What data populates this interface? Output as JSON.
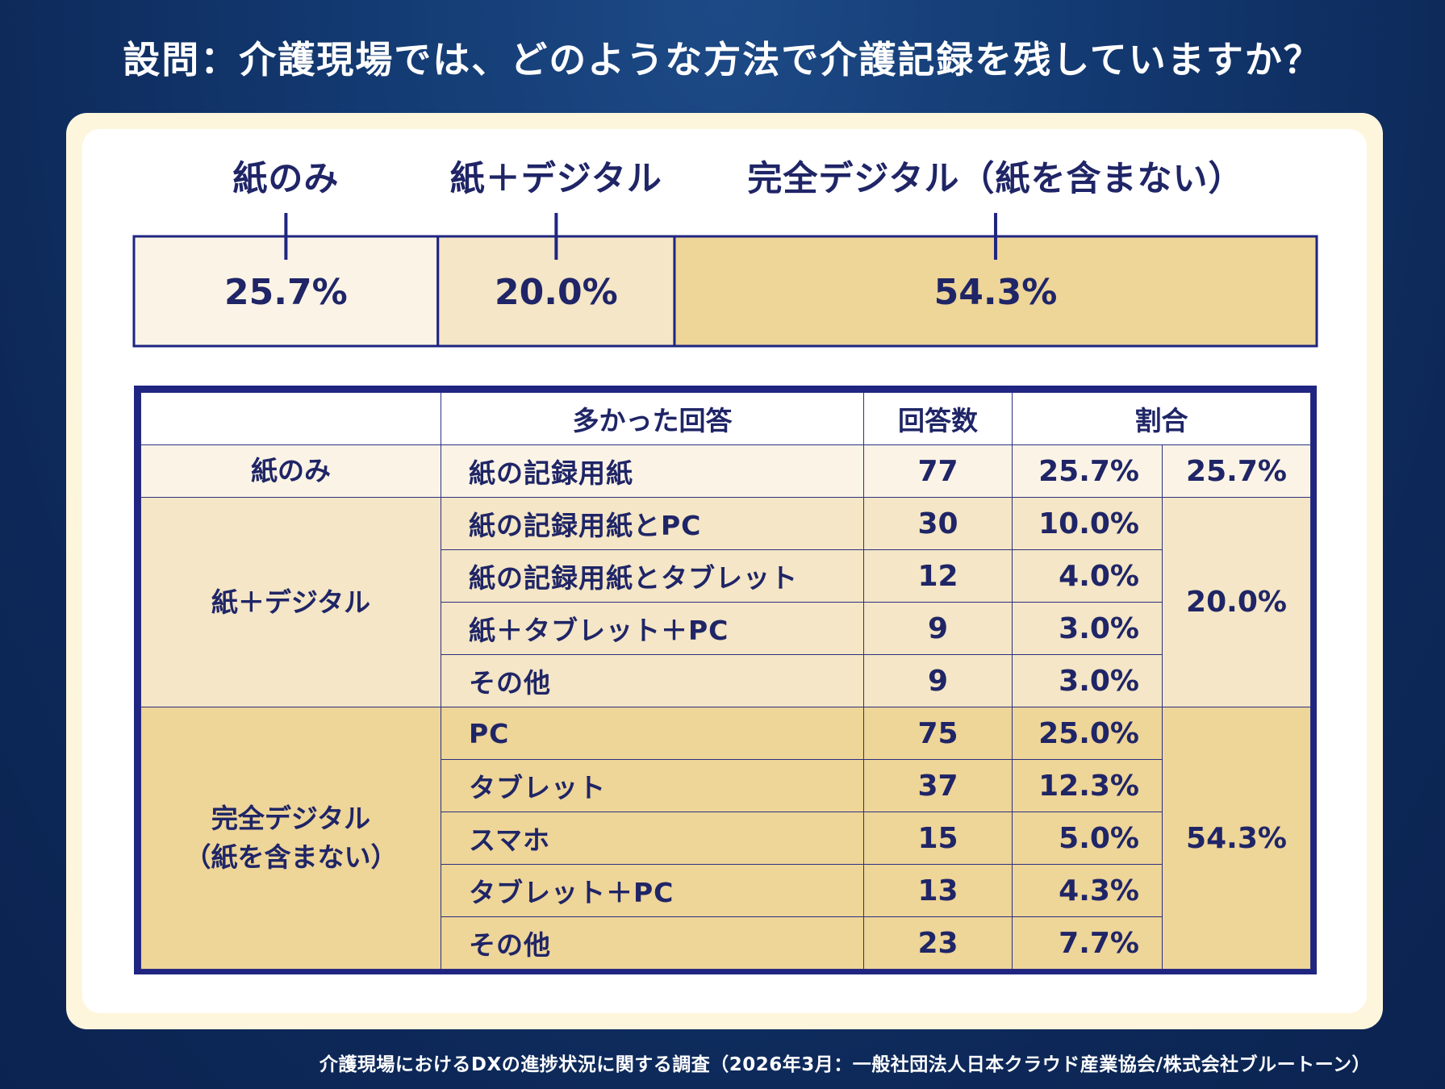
{
  "title": "設問：介護現場では、どのような方法で介護記録を残していますか？",
  "source": "介護現場におけるDXの進捗状況に関する調査（2026年3月：一般社団法人日本クラウド産業協会/株式会社ブルートーン）",
  "colors": {
    "background": "#0d2858",
    "card_outer": "#fdf6dc",
    "paper_only": "#fbf4e6",
    "paper_digital": "#f4e6c6",
    "full_digital": "#eed598",
    "ink": "#1f2566",
    "border": "#1f2580"
  },
  "chart_data": {
    "type": "bar",
    "orientation": "horizontal-stacked-100",
    "categories": [
      "紙のみ",
      "紙＋デジタル",
      "完全デジタル（紙を含まない）"
    ],
    "values": [
      25.7,
      20.0,
      54.3
    ],
    "value_labels": [
      "25.7%",
      "20.0%",
      "54.3%"
    ],
    "unit": "%"
  },
  "table": {
    "headers": {
      "category": "",
      "answer": "多かった回答",
      "count": "回答数",
      "ratio": "割合"
    },
    "groups": [
      {
        "category": "紙のみ",
        "total": "25.7%",
        "rows": [
          {
            "answer": "紙の記録用紙",
            "count": "77",
            "percent": "25.7%"
          }
        ]
      },
      {
        "category": "紙＋デジタル",
        "total": "20.0%",
        "rows": [
          {
            "answer": "紙の記録用紙とPC",
            "count": "30",
            "percent": "10.0%"
          },
          {
            "answer": "紙の記録用紙とタブレット",
            "count": "12",
            "percent": "4.0%"
          },
          {
            "answer": "紙＋タブレット＋PC",
            "count": "9",
            "percent": "3.0%"
          },
          {
            "answer": "その他",
            "count": "9",
            "percent": "3.0%"
          }
        ]
      },
      {
        "category": "完全デジタル\n（紙を含まない）",
        "total": "54.3%",
        "rows": [
          {
            "answer": "PC",
            "count": "75",
            "percent": "25.0%"
          },
          {
            "answer": "タブレット",
            "count": "37",
            "percent": "12.3%"
          },
          {
            "answer": "スマホ",
            "count": "15",
            "percent": "5.0%"
          },
          {
            "answer": "タブレット＋PC",
            "count": "13",
            "percent": "4.3%"
          },
          {
            "answer": "その他",
            "count": "23",
            "percent": "7.7%"
          }
        ]
      }
    ]
  }
}
